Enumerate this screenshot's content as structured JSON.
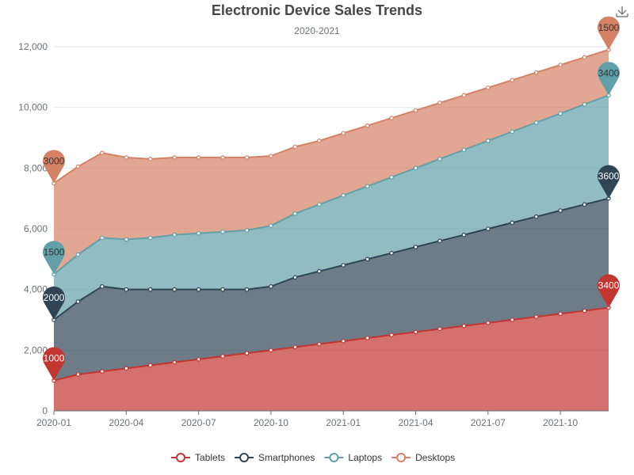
{
  "chart_data": {
    "type": "area",
    "stacked": true,
    "title": "Electronic Device Sales Trends",
    "subtitle": "2020-2021",
    "xlabel": "",
    "ylabel": "",
    "ylim": [
      0,
      12000
    ],
    "y_ticks": [
      "0",
      "2,000",
      "4,000",
      "6,000",
      "8,000",
      "10,000",
      "12,000"
    ],
    "x_tick_labels": [
      "2020-01",
      "2020-04",
      "2020-07",
      "2020-10",
      "2021-01",
      "2021-04",
      "2021-07",
      "2021-10"
    ],
    "x": [
      "2020-01",
      "2020-02",
      "2020-03",
      "2020-04",
      "2020-05",
      "2020-06",
      "2020-07",
      "2020-08",
      "2020-09",
      "2020-10",
      "2020-11",
      "2020-12",
      "2021-01",
      "2021-02",
      "2021-03",
      "2021-04",
      "2021-05",
      "2021-06",
      "2021-07",
      "2021-08",
      "2021-09",
      "2021-10",
      "2021-11",
      "2021-12"
    ],
    "grid": true,
    "legend_position": "bottom-center",
    "series": [
      {
        "name": "Tablets",
        "color": "#c23531",
        "values": [
          1000,
          1200,
          1300,
          1400,
          1500,
          1600,
          1700,
          1800,
          1900,
          2000,
          2100,
          2200,
          2300,
          2400,
          2500,
          2600,
          2700,
          2800,
          2900,
          3000,
          3100,
          3200,
          3300,
          3400
        ],
        "markers": [
          {
            "label": "1000",
            "index": 0
          },
          {
            "label": "3400",
            "index": 23
          }
        ]
      },
      {
        "name": "Smartphones",
        "color": "#2f4554",
        "values": [
          2000,
          2400,
          2800,
          2600,
          2500,
          2400,
          2300,
          2200,
          2100,
          2100,
          2300,
          2400,
          2500,
          2600,
          2700,
          2800,
          2900,
          3000,
          3100,
          3200,
          3300,
          3400,
          3500,
          3600
        ],
        "markers": [
          {
            "label": "2000",
            "index": 0
          },
          {
            "label": "3600",
            "index": 23
          }
        ]
      },
      {
        "name": "Laptops",
        "color": "#61a0a8",
        "values": [
          1500,
          1550,
          1600,
          1650,
          1700,
          1800,
          1850,
          1900,
          1950,
          2000,
          2100,
          2200,
          2300,
          2400,
          2500,
          2600,
          2700,
          2800,
          2900,
          3000,
          3100,
          3200,
          3300,
          3400
        ],
        "markers": [
          {
            "label": "1500",
            "index": 0
          },
          {
            "label": "3400",
            "index": 23
          }
        ]
      },
      {
        "name": "Desktops",
        "color": "#d48265",
        "values": [
          3000,
          2900,
          2800,
          2700,
          2600,
          2550,
          2500,
          2450,
          2400,
          2300,
          2200,
          2100,
          2050,
          2000,
          1950,
          1900,
          1850,
          1800,
          1750,
          1700,
          1650,
          1600,
          1550,
          1500
        ],
        "markers": [
          {
            "label": "3000",
            "index": 0
          },
          {
            "label": "1500",
            "index": 23
          }
        ]
      }
    ]
  },
  "toolbox": {
    "icon": "download-icon"
  }
}
